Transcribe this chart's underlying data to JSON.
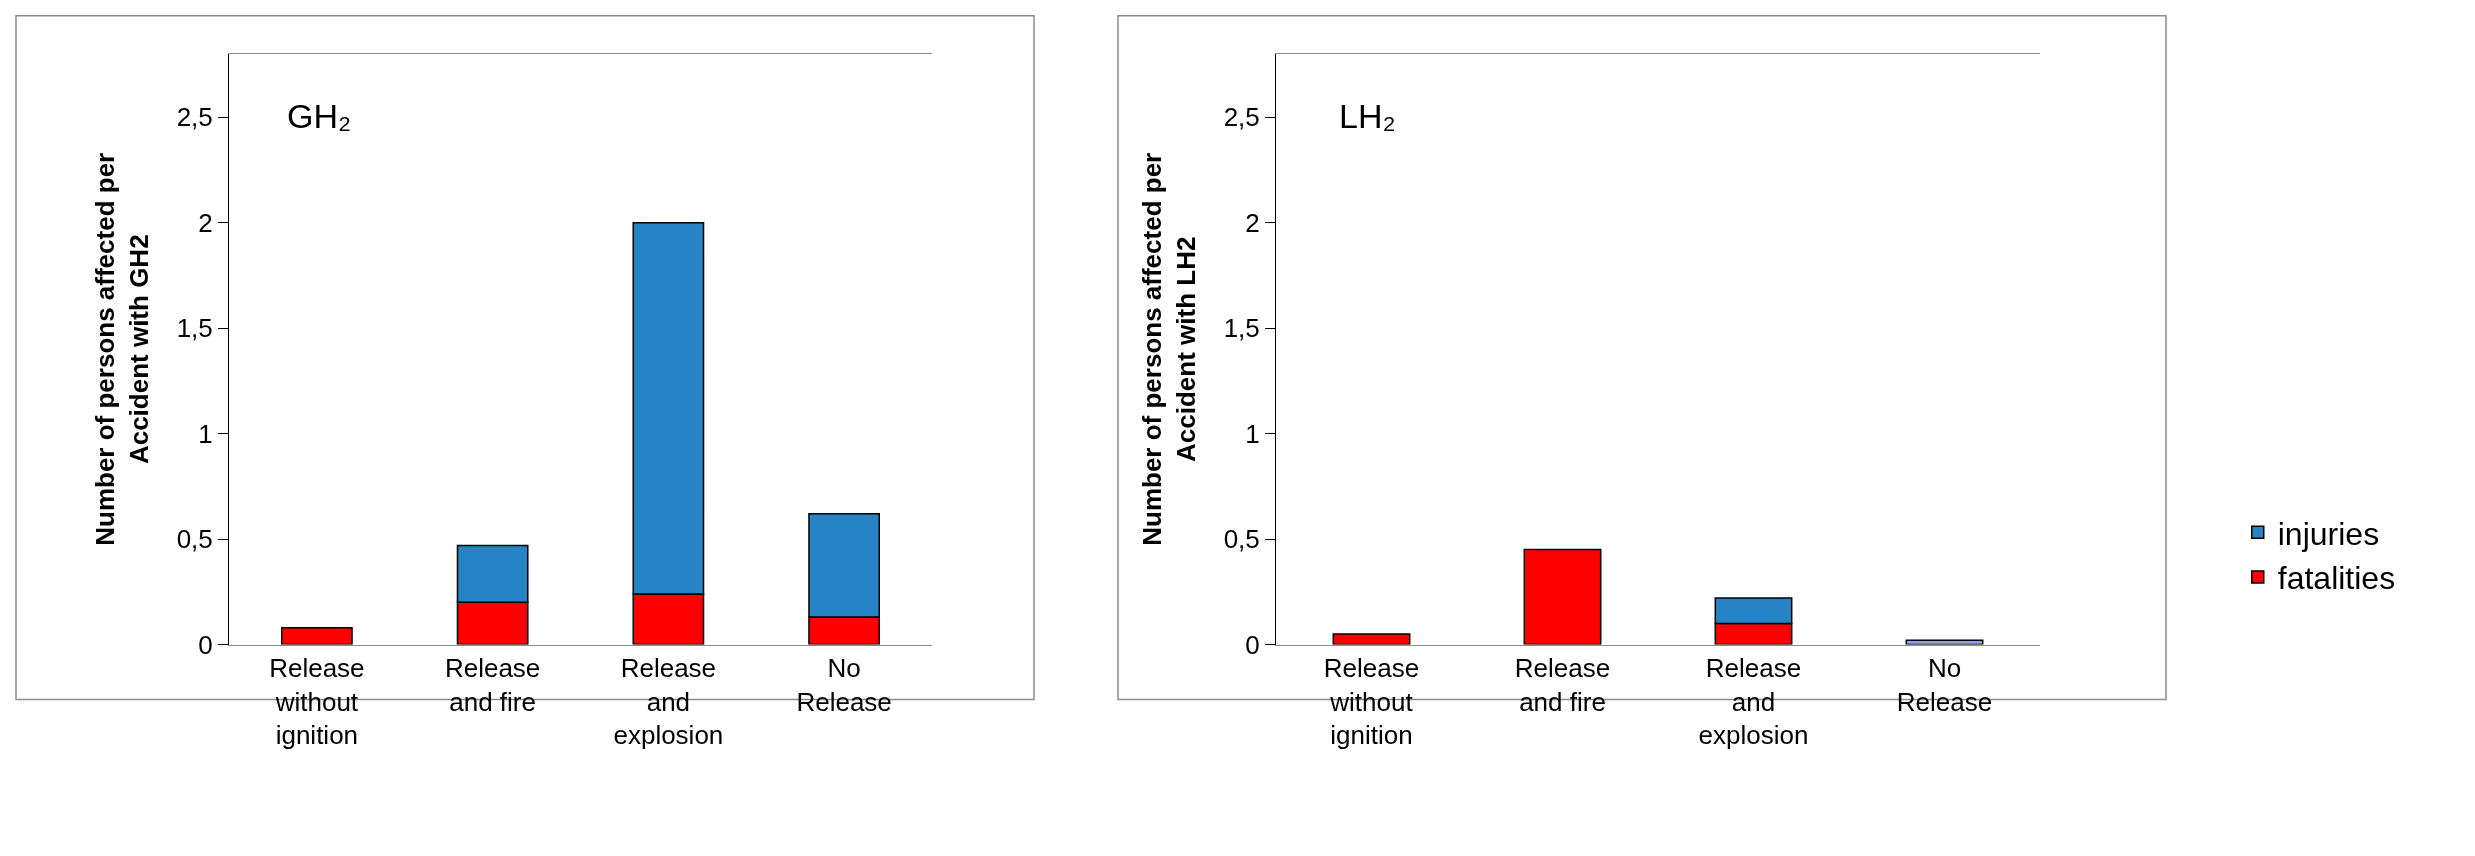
{
  "chart_data": [
    {
      "type": "bar",
      "title": "GH₂",
      "ylabel": "Number of persons affected per Accident with GH2",
      "categories": [
        "Release without ignition",
        "Release and fire",
        "Release and explosion",
        "No Release"
      ],
      "stacked": true,
      "ylim": [
        0,
        2.8
      ],
      "yticks": [
        0,
        {
          "value": 0.5,
          "label": "0,5"
        },
        1,
        {
          "value": 1.5,
          "label": "1,5"
        },
        2,
        {
          "value": 2.5,
          "label": "2,5"
        }
      ],
      "legend": "right",
      "series": [
        {
          "name": "fatalities",
          "color": "#ff0000",
          "values": [
            0.08,
            0.2,
            0.24,
            0.13
          ]
        },
        {
          "name": "injuries",
          "color": "#2683c6",
          "values": [
            null,
            0.27,
            1.76,
            0.49
          ]
        }
      ]
    },
    {
      "type": "bar",
      "title": "LH₂",
      "ylabel": "Number of persons affected per Accident with LH2",
      "categories": [
        "Release without ignition",
        "Release and fire",
        "Release and explosion",
        "No Release"
      ],
      "stacked": true,
      "ylim": [
        0,
        2.8
      ],
      "yticks": [
        0,
        {
          "value": 0.5,
          "label": "0,5"
        },
        1,
        {
          "value": 1.5,
          "label": "1,5"
        },
        2,
        {
          "value": 2.5,
          "label": "2,5"
        }
      ],
      "legend": "right",
      "series": [
        {
          "name": "fatalities",
          "color": "#ff0000",
          "values": [
            0.05,
            0.45,
            0.1,
            null
          ]
        },
        {
          "name": "injuries",
          "color": "#2683c6",
          "colors": [
            "#2683c6",
            "#2683c6",
            "#2683c6",
            "#9999ff"
          ],
          "values": [
            null,
            null,
            0.12,
            0.02
          ]
        }
      ]
    }
  ]
}
